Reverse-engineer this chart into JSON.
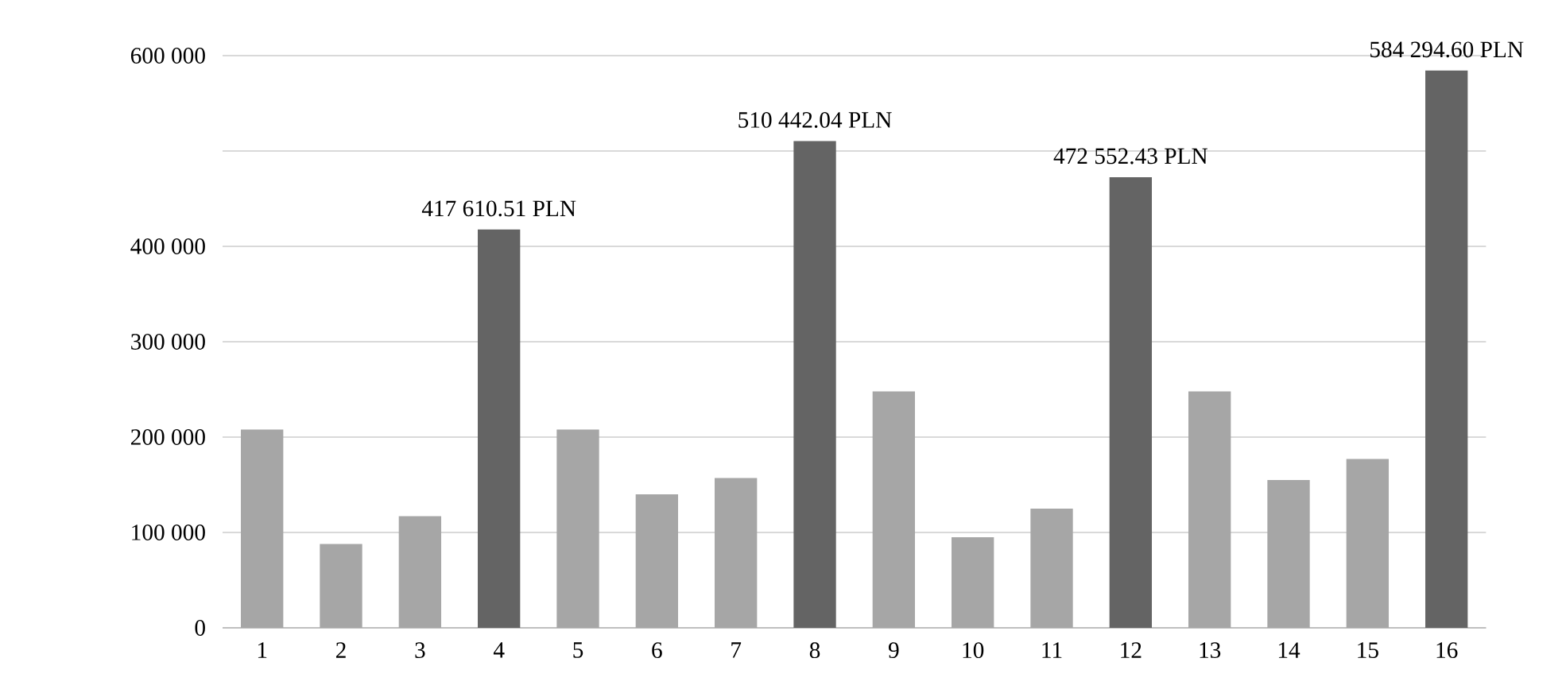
{
  "chart_data": {
    "type": "bar",
    "categories": [
      "1",
      "2",
      "3",
      "4",
      "5",
      "6",
      "7",
      "8",
      "9",
      "10",
      "11",
      "12",
      "13",
      "14",
      "15",
      "16"
    ],
    "values": [
      208000,
      88000,
      117000,
      417610.51,
      208000,
      140000,
      157000,
      510442.04,
      248000,
      95000,
      125000,
      472552.43,
      248000,
      155000,
      177000,
      584294.6
    ],
    "colors": [
      "#a6a6a6",
      "#a6a6a6",
      "#a6a6a6",
      "#646464",
      "#a6a6a6",
      "#a6a6a6",
      "#a6a6a6",
      "#646464",
      "#a6a6a6",
      "#a6a6a6",
      "#a6a6a6",
      "#646464",
      "#a6a6a6",
      "#a6a6a6",
      "#a6a6a6",
      "#646464"
    ],
    "value_labels": [
      null,
      null,
      null,
      "417 610.51 PLN",
      null,
      null,
      null,
      "510 442.04 PLN",
      null,
      null,
      null,
      "472 552.43 PLN",
      null,
      null,
      null,
      "584 294.60 PLN"
    ],
    "ylim": [
      0,
      600000
    ],
    "yticks": [
      {
        "value": 0,
        "label": "0"
      },
      {
        "value": 100000,
        "label": "100 000"
      },
      {
        "value": 200000,
        "label": "200 000"
      },
      {
        "value": 300000,
        "label": "300 000"
      },
      {
        "value": 400000,
        "label": "400 000"
      },
      {
        "value": 500000,
        "label": null
      },
      {
        "value": 600000,
        "label": "600 000"
      }
    ],
    "grid": "y"
  }
}
